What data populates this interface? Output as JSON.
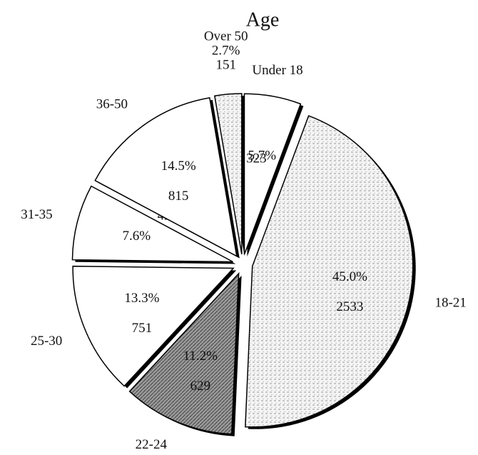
{
  "chart_data": {
    "type": "pie",
    "title": "Age",
    "categories": [
      "Under 18",
      "18-21",
      "22-24",
      "25-30",
      "31-35",
      "36-50",
      "Over 50"
    ],
    "values": [
      5.7,
      45.0,
      11.2,
      13.3,
      7.6,
      14.5,
      2.7
    ],
    "value_labels": [
      "5.7%",
      "45.0%",
      "11.2%",
      "13.3%",
      "7.6%",
      "14.5%",
      "2.7%"
    ],
    "counts": [
      323,
      2533,
      629,
      751,
      426,
      815,
      151
    ],
    "colors": [
      "#ffffff",
      "#dcdcdc",
      "#8a8a8a",
      "#ffffff",
      "#ffffff",
      "#ffffff",
      "#d0d0d0"
    ]
  }
}
